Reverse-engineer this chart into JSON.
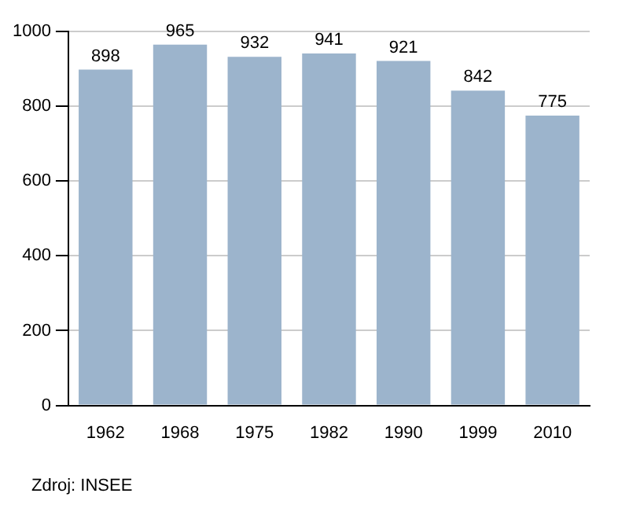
{
  "chart_data": {
    "type": "bar",
    "categories": [
      "1962",
      "1968",
      "1975",
      "1982",
      "1990",
      "1999",
      "2010"
    ],
    "values": [
      898,
      965,
      932,
      941,
      921,
      842,
      775
    ],
    "color": "#9cb4cc",
    "ylim": [
      0,
      1000
    ],
    "yticks": [
      0,
      200,
      400,
      600,
      800,
      1000
    ],
    "grid": "y",
    "data_labels": true,
    "legend": false,
    "annotations": [
      "Zdroj: INSEE"
    ]
  }
}
